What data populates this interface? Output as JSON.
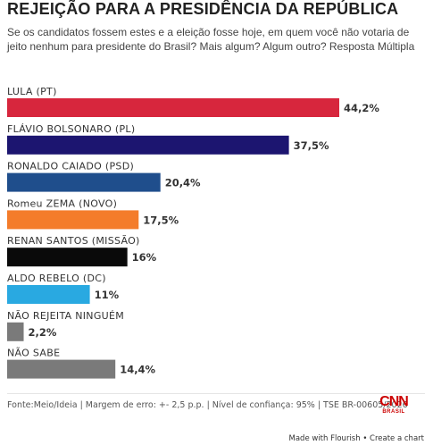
{
  "chart_data": {
    "type": "bar",
    "orientation": "horizontal",
    "title": "REJEIÇÃO PARA A PRESIDÊNCIA DA REPÚBLICA",
    "subtitle": "Se os candidatos fossem estes e a eleição fosse hoje, em quem você não votaria de jeito nenhum para presidente do Brasil? Mais algum? Algum outro? Resposta Múltipla",
    "categories": [
      "LULA (PT)",
      "FLÁVIO BOLSONARO (PL)",
      "RONALDO CAIADO (PSD)",
      "Romeu ZEMA (NOVO)",
      "RENAN SANTOS (MISSÃO)",
      "ALDO REBELO (DC)",
      "NÃO REJEITA NINGUÉM",
      "NÃO SABE"
    ],
    "values": [
      44.2,
      37.5,
      20.4,
      17.5,
      16,
      11,
      2.2,
      14.4
    ],
    "value_labels": [
      "44,2%",
      "37,5%",
      "20,4%",
      "17,5%",
      "16%",
      "11%",
      "2,2%",
      "14,4%"
    ],
    "colors": [
      "#d7263d",
      "#1c1570",
      "#1f4e8c",
      "#f47c2a",
      "#0a0a0a",
      "#29a9e1",
      "#7a7a7a",
      "#7a7a7a"
    ],
    "xlim": [
      0,
      44.2
    ],
    "grid": false,
    "legend": "none"
  },
  "footer": {
    "source": "Fonte:Meio/Ideia | Margem de erro: +- 2,5 p.p. | Nível de confiança: 95% | TSE BR-00605/2026",
    "logo_main": "CNN",
    "logo_sub": "BRASIL",
    "credit": "Made with Flourish • Create a chart"
  }
}
